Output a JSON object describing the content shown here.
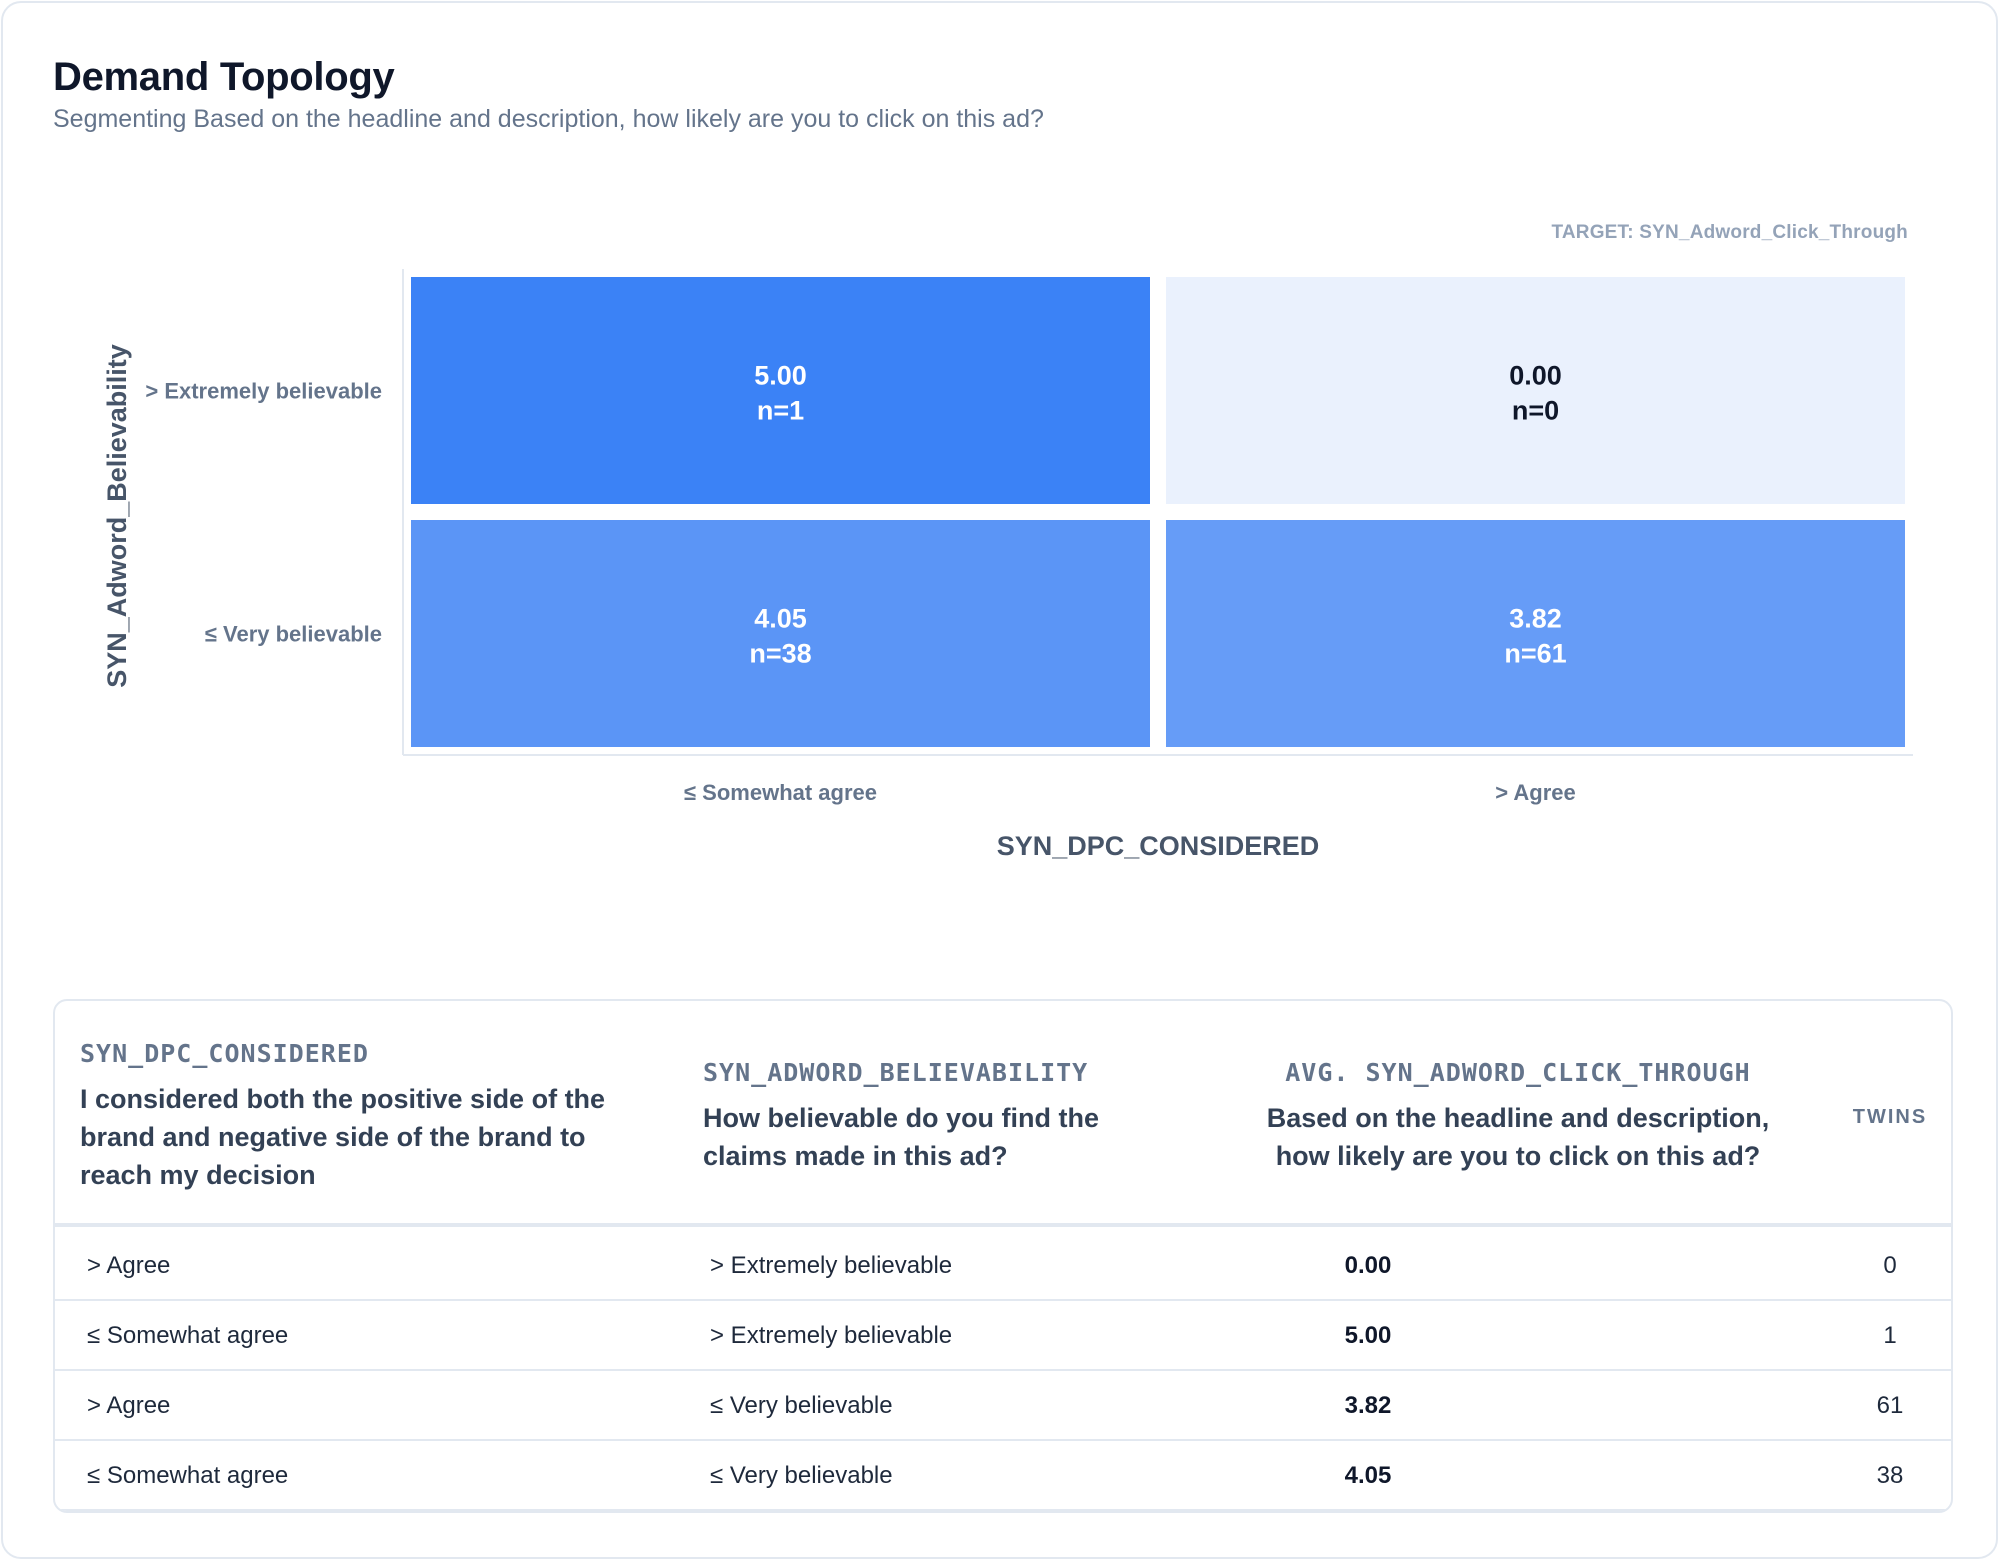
{
  "title": "Demand Topology",
  "subtitle": "Segmenting Based on the headline and description, how likely are you to click on this ad?",
  "target_label": "TARGET: SYN_Adword_Click_Through",
  "chart_data": {
    "type": "heatmap",
    "xlabel": "SYN_DPC_CONSIDERED",
    "ylabel": "SYN_Adword_Believability",
    "x_categories": [
      "≤ Somewhat agree",
      "> Agree"
    ],
    "y_categories": [
      "> Extremely believable",
      "≤ Very believable"
    ],
    "cells": [
      {
        "x": 0,
        "y": 0,
        "value": "5.00",
        "n": "n=1",
        "color": "#3b82f6",
        "text_color": "#ffffff"
      },
      {
        "x": 1,
        "y": 0,
        "value": "0.00",
        "n": "n=0",
        "color": "#eaf1fd",
        "text_color": "#0f172a"
      },
      {
        "x": 0,
        "y": 1,
        "value": "4.05",
        "n": "n=38",
        "color": "#5b95f6",
        "text_color": "#ffffff"
      },
      {
        "x": 1,
        "y": 1,
        "value": "3.82",
        "n": "n=61",
        "color": "#669cf7",
        "text_color": "#ffffff"
      }
    ]
  },
  "table": {
    "columns": [
      {
        "code": "SYN_DPC_CONSIDERED",
        "question": "I considered both the positive side of the brand and negative side of the brand to reach my decision"
      },
      {
        "code": "SYN_ADWORD_BELIEVABILITY",
        "question": "How believable do you find the claims made in this ad?"
      },
      {
        "code": "AVG. SYN_ADWORD_CLICK_THROUGH",
        "question": "Based on the headline and description, how likely are you to click on this ad?"
      },
      {
        "code": "TWINS"
      }
    ],
    "rows": [
      {
        "dpc": "> Agree",
        "believability": "> Extremely believable",
        "avg": "0.00",
        "twins": "0"
      },
      {
        "dpc": "≤ Somewhat agree",
        "believability": "> Extremely believable",
        "avg": "5.00",
        "twins": "1"
      },
      {
        "dpc": "> Agree",
        "believability": "≤ Very believable",
        "avg": "3.82",
        "twins": "61"
      },
      {
        "dpc": "≤ Somewhat agree",
        "believability": "≤ Very believable",
        "avg": "4.05",
        "twins": "38"
      }
    ]
  }
}
